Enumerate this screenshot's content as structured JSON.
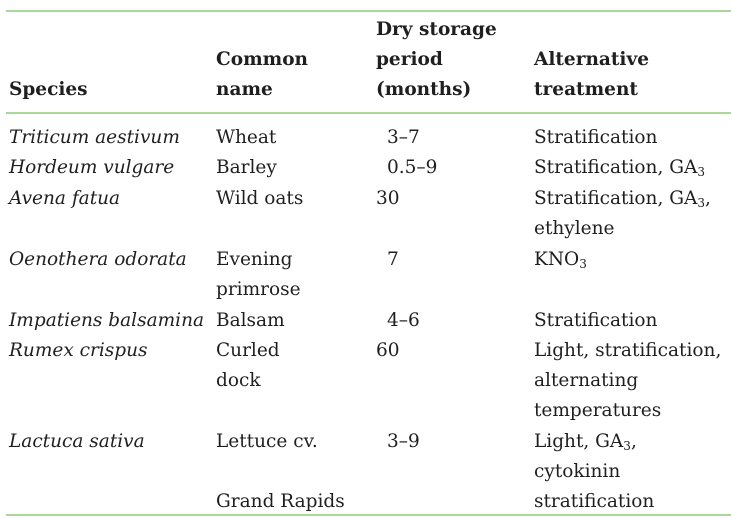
{
  "table": {
    "headers": {
      "species": "Species",
      "common_name": [
        "Common",
        "name"
      ],
      "dry_storage": [
        "Dry storage",
        "period",
        "(months)"
      ],
      "alternative": [
        "Alternative",
        "treatment"
      ]
    },
    "rows": [
      {
        "species": "Triticum aestivum",
        "common": [
          "Wheat"
        ],
        "period": "3–7",
        "treatment": [
          [
            "Stratification",
            ""
          ]
        ]
      },
      {
        "species": "Hordeum vulgare",
        "common": [
          "Barley"
        ],
        "period": "0.5–9",
        "treatment": [
          [
            "Stratification, GA",
            "3"
          ]
        ]
      },
      {
        "species": "Avena fatua",
        "common": [
          "Wild oats"
        ],
        "period": "30",
        "treatment": [
          [
            "Stratification, GA",
            "3",
            ","
          ],
          [
            "ethylene",
            ""
          ]
        ]
      },
      {
        "species": "Oenothera odorata",
        "common": [
          "Evening",
          "primrose"
        ],
        "period": "7",
        "treatment": [
          [
            "KNO",
            "3"
          ]
        ]
      },
      {
        "species": "Impatiens balsamina",
        "common": [
          "Balsam"
        ],
        "period": "4–6",
        "treatment": [
          [
            "Stratification",
            ""
          ]
        ]
      },
      {
        "species": "Rumex crispus",
        "common": [
          "Curled",
          "dock"
        ],
        "period": "60",
        "treatment": [
          [
            "Light, stratification,",
            ""
          ],
          [
            "alternating",
            ""
          ],
          [
            "temperatures",
            ""
          ]
        ]
      },
      {
        "species": "Lactuca sativa",
        "common": [
          "Lettuce cv.",
          "",
          "Grand Rapids"
        ],
        "period": "3–9",
        "treatment": [
          [
            "Light, GA",
            "3",
            ","
          ],
          [
            "cytokinin",
            ""
          ],
          [
            "stratification",
            ""
          ]
        ]
      }
    ]
  }
}
